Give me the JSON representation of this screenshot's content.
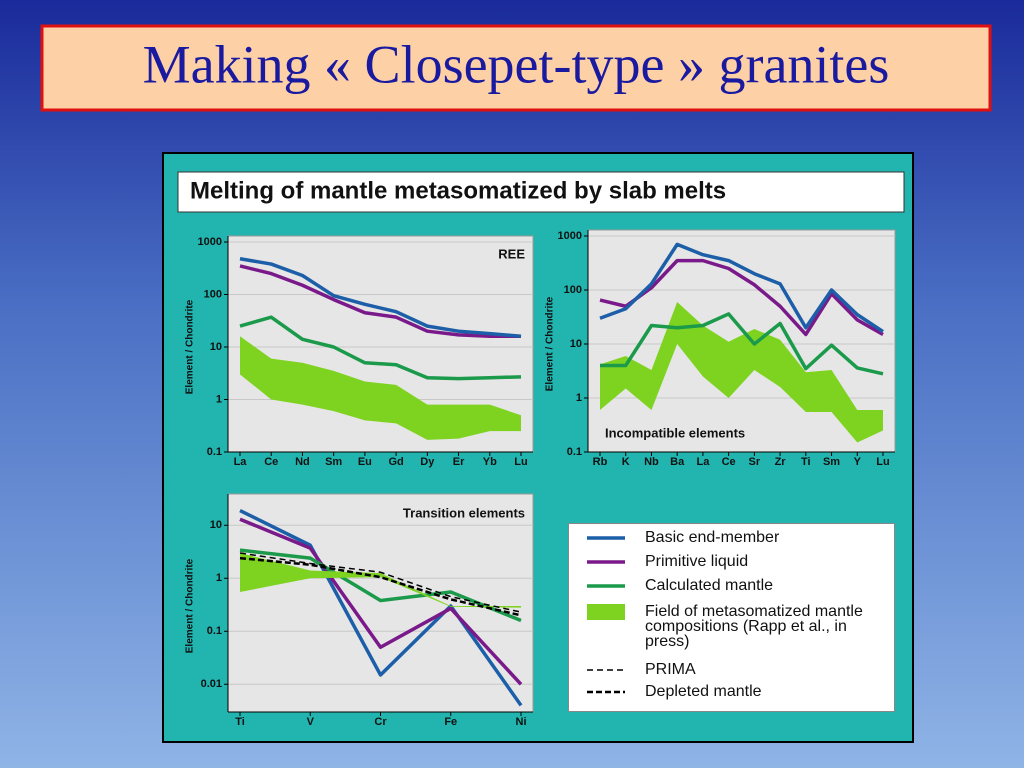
{
  "title": "Making « Closepet-type » granites",
  "panel_title": "Melting of mantle metasomatized by slab melts",
  "chart_data": [
    {
      "type": "line",
      "annotation": "REE",
      "ylabel": "Element / Chondrite",
      "log_y": true,
      "grid": true,
      "categories": [
        "La",
        "Ce",
        "Nd",
        "Sm",
        "Eu",
        "Gd",
        "Dy",
        "Er",
        "Yb",
        "Lu"
      ],
      "ylim": [
        0.1,
        1000
      ],
      "yticks": [
        0.1,
        1,
        10,
        100,
        1000
      ],
      "series": [
        {
          "name": "Field of metasomatized mantle compositions (Rapp et al., in press)",
          "color": "#7ed321",
          "high": [
            16,
            6,
            5,
            3.5,
            2.2,
            1.9,
            0.8,
            0.8,
            0.8,
            0.5
          ],
          "low": [
            3,
            1,
            0.8,
            0.6,
            0.4,
            0.35,
            0.17,
            0.18,
            0.25,
            0.25
          ]
        },
        {
          "name": "Calculated mantle",
          "color": "#1a9a4a",
          "values": [
            25,
            37,
            14,
            10,
            5,
            4.6,
            2.6,
            2.5,
            2.6,
            2.7
          ]
        },
        {
          "name": "Primitive liquid",
          "color": "#7a1a8a",
          "values": [
            350,
            250,
            150,
            80,
            45,
            37,
            20,
            17,
            16,
            16
          ]
        },
        {
          "name": "Basic end-member",
          "color": "#1c5fa8",
          "values": [
            480,
            380,
            230,
            95,
            65,
            47,
            25,
            20,
            18,
            16
          ]
        }
      ]
    },
    {
      "type": "line",
      "annotation": "Incompatible elements",
      "ylabel": "Element / Chondrite",
      "log_y": true,
      "grid": true,
      "categories": [
        "Rb",
        "K",
        "Nb",
        "Ba",
        "La",
        "Ce",
        "Sr",
        "Zr",
        "Ti",
        "Sm",
        "Y",
        "Lu"
      ],
      "ylim": [
        0.1,
        1000
      ],
      "yticks": [
        0.1,
        1,
        10,
        100,
        1000
      ],
      "series": [
        {
          "name": "Field of metasomatized mantle compositions (Rapp et al., in press)",
          "color": "#7ed321",
          "high": [
            4.2,
            6,
            3.3,
            60,
            22,
            11,
            19,
            12,
            3,
            3.3,
            0.6,
            0.6
          ],
          "low": [
            0.6,
            1.5,
            0.6,
            10,
            2.5,
            1,
            3.3,
            1.6,
            0.55,
            0.55,
            0.15,
            0.25
          ]
        },
        {
          "name": "Calculated mantle",
          "color": "#1a9a4a",
          "values": [
            4,
            4,
            22,
            20,
            22,
            36,
            10,
            24,
            3.5,
            9.5,
            3.6,
            2.8
          ]
        },
        {
          "name": "Primitive liquid",
          "color": "#7a1a8a",
          "values": [
            65,
            50,
            110,
            350,
            350,
            250,
            125,
            50,
            15,
            85,
            28,
            15
          ]
        },
        {
          "name": "Basic end-member",
          "color": "#1c5fa8",
          "values": [
            30,
            45,
            130,
            700,
            450,
            350,
            200,
            130,
            20,
            100,
            35,
            17
          ]
        }
      ]
    },
    {
      "type": "line",
      "annotation": "Transition elements",
      "ylabel": "Element / Chondrite",
      "log_y": true,
      "grid": true,
      "categories": [
        "Ti",
        "V",
        "Cr",
        "Fe",
        "Ni"
      ],
      "ylim": [
        0.003,
        30
      ],
      "yticks": [
        0.01,
        0.1,
        1,
        10
      ],
      "series": [
        {
          "name": "Basic end-member",
          "color": "#1c5fa8",
          "values": [
            19,
            4.2,
            0.015,
            0.3,
            0.004
          ]
        },
        {
          "name": "Primitive liquid",
          "color": "#7a1a8a",
          "values": [
            13,
            3.7,
            0.05,
            0.27,
            0.01
          ]
        },
        {
          "name": "Calculated mantle",
          "color": "#1a9a4a",
          "values": [
            3.4,
            2.4,
            0.38,
            0.55,
            0.16
          ]
        },
        {
          "name": "Field of metasomatized mantle compositions (Rapp et al., in press)",
          "color": "#7ed321",
          "high": [
            3,
            1.4,
            1.25,
            0.3,
            0.3
          ],
          "low": [
            0.55,
            1,
            1.05,
            0.29,
            0.28
          ]
        },
        {
          "name": "PRIMA",
          "color": "#000000",
          "style": "dashed",
          "values": [
            3,
            1.9,
            1.3,
            0.45,
            0.23
          ]
        },
        {
          "name": "Depleted mantle",
          "color": "#000000",
          "style": "dashed-bold",
          "values": [
            2.4,
            1.8,
            1.05,
            0.4,
            0.2
          ]
        }
      ]
    }
  ]
}
